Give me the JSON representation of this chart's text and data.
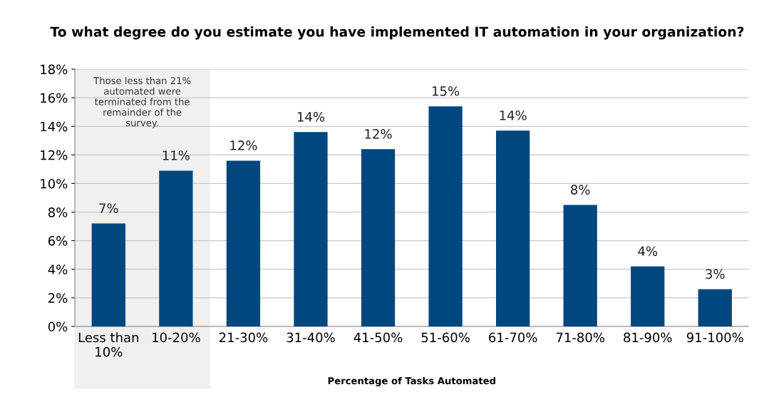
{
  "chart_data": {
    "type": "bar",
    "title": "To what degree do you estimate you have implemented IT automation in your organization?",
    "xlabel": "Percentage of Tasks Automated",
    "categories": [
      "Less than\n10%",
      "10-20%",
      "21-30%",
      "31-40%",
      "41-50%",
      "51-60%",
      "61-70%",
      "71-80%",
      "81-90%",
      "91-100%"
    ],
    "values": [
      7.2,
      10.9,
      11.6,
      13.6,
      12.4,
      15.4,
      13.7,
      8.5,
      4.2,
      2.6
    ],
    "value_labels": [
      "7%",
      "11%",
      "12%",
      "14%",
      "12%",
      "15%",
      "14%",
      "8%",
      "4%",
      "3%"
    ],
    "color": "#00467f",
    "ylim": [
      0,
      18
    ],
    "yticks": [
      {
        "value": 0,
        "label": "0%"
      },
      {
        "value": 2,
        "label": "2%"
      },
      {
        "value": 4,
        "label": "4%"
      },
      {
        "value": 6,
        "label": "6%"
      },
      {
        "value": 8,
        "label": "8%"
      },
      {
        "value": 10,
        "label": "10%"
      },
      {
        "value": 12,
        "label": "12%"
      },
      {
        "value": 14,
        "label": "14%"
      },
      {
        "value": 16,
        "label": "16%"
      },
      {
        "value": 18,
        "label": "18%"
      }
    ],
    "grid": "y",
    "bands": [
      {
        "axis": "x",
        "from": "Less than\n10%",
        "to": "10-20%",
        "label": "Those less than 21%\nautomated were\nterminated from the\nremainder of the\nsurvey.",
        "color": "#f0f0f0"
      }
    ]
  }
}
